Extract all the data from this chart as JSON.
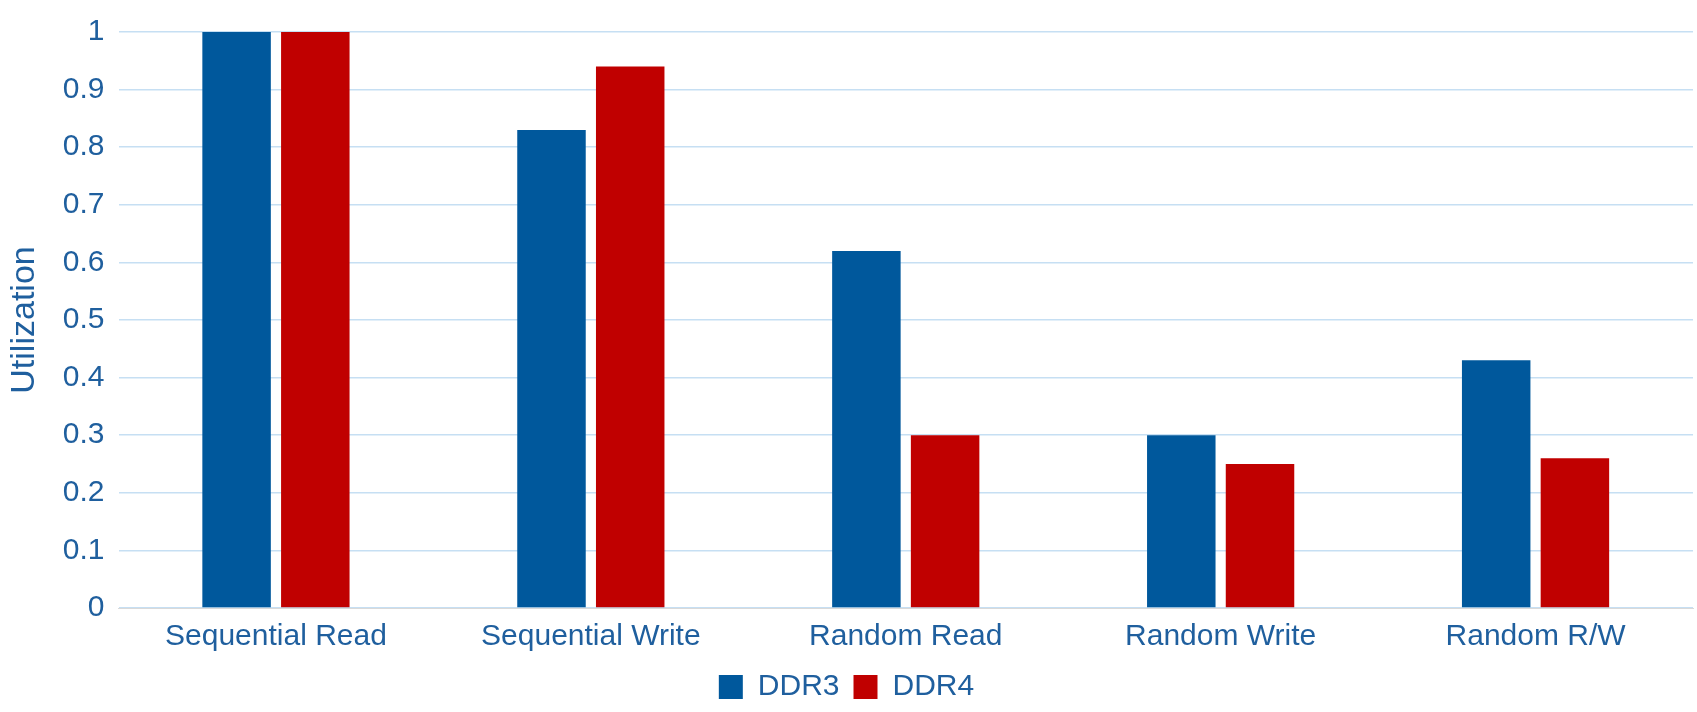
{
  "chart_data": {
    "type": "bar",
    "ylabel": "Utilization",
    "categories": [
      "Sequential Read",
      "Sequential Write",
      "Random Read",
      "Random Write",
      "Random R/W"
    ],
    "series": [
      {
        "name": "DDR3",
        "color": "#00589c",
        "values": [
          1,
          0.83,
          0.62,
          0.3,
          0.43
        ]
      },
      {
        "name": "DDR4",
        "color": "#c00000",
        "values": [
          1,
          0.94,
          0.3,
          0.25,
          0.26
        ]
      }
    ],
    "ylim": [
      0,
      1
    ],
    "yticks": [
      0,
      0.1,
      0.2,
      0.3,
      0.4,
      0.5,
      0.6,
      0.7,
      0.8,
      0.9,
      1
    ],
    "grid": "y",
    "legend": "bottom"
  }
}
